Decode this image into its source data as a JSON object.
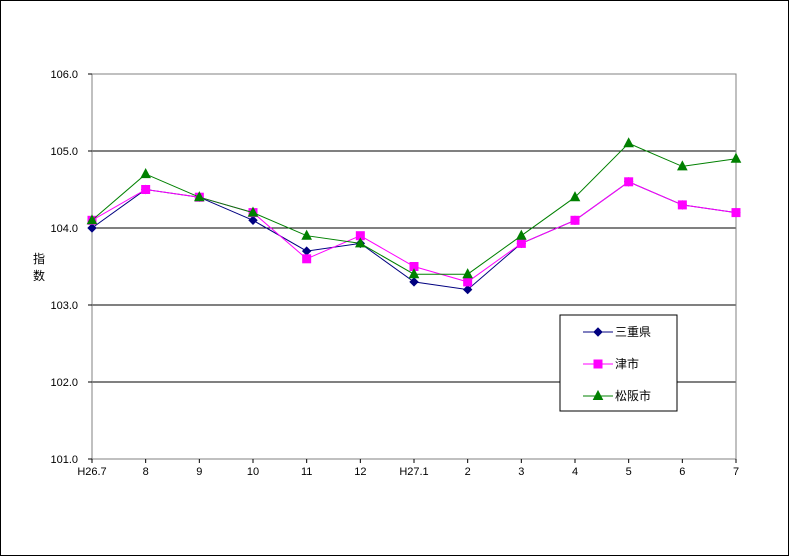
{
  "chart_data": {
    "type": "line",
    "title": "",
    "xlabel": "",
    "ylabel": "指\n数",
    "categories": [
      "H26.7",
      "8",
      "9",
      "10",
      "11",
      "12",
      "H27.1",
      "2",
      "3",
      "4",
      "5",
      "6",
      "7"
    ],
    "ylim": [
      101.0,
      106.0
    ],
    "yticks": [
      "101.0",
      "102.0",
      "103.0",
      "104.0",
      "105.0",
      "106.0"
    ],
    "grid": "horizontal major lines",
    "legend_position": "lower-right inside plot",
    "series": [
      {
        "name": "三重県",
        "color": "#000080",
        "marker": "diamond",
        "values": [
          104.0,
          104.5,
          104.4,
          104.1,
          103.7,
          103.8,
          103.3,
          103.2,
          103.8,
          104.1,
          104.6,
          104.3,
          104.2
        ]
      },
      {
        "name": "津市",
        "color": "#ff00ff",
        "marker": "square",
        "values": [
          104.1,
          104.5,
          104.4,
          104.2,
          103.6,
          103.9,
          103.5,
          103.3,
          103.8,
          104.1,
          104.6,
          104.3,
          104.2
        ]
      },
      {
        "name": "松阪市",
        "color": "#008000",
        "marker": "triangle",
        "values": [
          104.1,
          104.7,
          104.4,
          104.2,
          103.9,
          103.8,
          103.4,
          103.4,
          103.9,
          104.4,
          105.1,
          104.8,
          104.9
        ]
      }
    ]
  }
}
